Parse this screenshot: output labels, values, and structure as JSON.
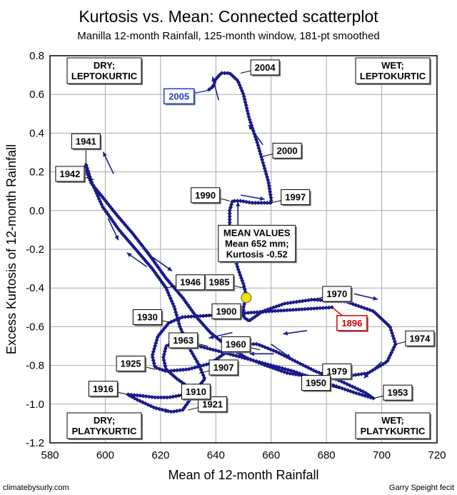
{
  "chart_data": {
    "type": "scatter",
    "title": "Kurtosis vs. Mean: Connected scatterplot",
    "subtitle": "Manilla 12-month Rainfall, 125-month window, 181-pt smoothed",
    "xlabel": "Mean of 12-month Rainfall",
    "ylabel": "Excess Kurtosis of 12-month Rainfall",
    "xlim": [
      580,
      720
    ],
    "ylim": [
      -1.2,
      0.8
    ],
    "xticks": [
      "580",
      "600",
      "620",
      "640",
      "660",
      "680",
      "700",
      "720"
    ],
    "yticks": [
      "0.8",
      "0.6",
      "0.4",
      "0.2",
      "0.0",
      "-0.2",
      "-0.4",
      "-0.6",
      "-0.8",
      "-1.0",
      "-1.2"
    ],
    "grid": true,
    "series_color": "#1a1a8c",
    "path": [
      [
        682,
        -0.5
      ],
      [
        660,
        -0.52
      ],
      [
        640,
        -0.54
      ],
      [
        628,
        -0.55
      ],
      [
        623,
        -0.58
      ],
      [
        619,
        -0.65
      ],
      [
        618,
        -0.7
      ],
      [
        617,
        -0.75
      ],
      [
        618,
        -0.81
      ],
      [
        622,
        -0.83
      ],
      [
        630,
        -0.82
      ],
      [
        638,
        -0.79
      ],
      [
        643,
        -0.74
      ],
      [
        647,
        -0.69
      ],
      [
        655,
        -0.69
      ],
      [
        662,
        -0.73
      ],
      [
        669,
        -0.78
      ],
      [
        676,
        -0.83
      ],
      [
        685,
        -0.88
      ],
      [
        694,
        -0.94
      ],
      [
        697,
        -0.97
      ],
      [
        690,
        -0.94
      ],
      [
        680,
        -0.89
      ],
      [
        668,
        -0.83
      ],
      [
        655,
        -0.78
      ],
      [
        642,
        -0.73
      ],
      [
        631,
        -0.69
      ],
      [
        625,
        -0.68
      ],
      [
        622,
        -0.7
      ],
      [
        621,
        -0.76
      ],
      [
        622,
        -0.82
      ],
      [
        626,
        -0.87
      ],
      [
        630,
        -0.91
      ],
      [
        632,
        -0.95
      ],
      [
        630,
        -0.99
      ],
      [
        628,
        -1.03
      ],
      [
        624,
        -1.04
      ],
      [
        618,
        -1.02
      ],
      [
        612,
        -0.98
      ],
      [
        608,
        -0.95
      ],
      [
        612,
        -0.955
      ],
      [
        618,
        -0.965
      ],
      [
        623,
        -0.965
      ],
      [
        629,
        -0.95
      ],
      [
        633,
        -0.92
      ],
      [
        636,
        -0.87
      ],
      [
        634,
        -0.8
      ],
      [
        630,
        -0.7
      ],
      [
        627,
        -0.6
      ],
      [
        625,
        -0.5
      ],
      [
        622,
        -0.4
      ],
      [
        617,
        -0.3
      ],
      [
        611,
        -0.2
      ],
      [
        605,
        -0.1
      ],
      [
        599,
        0.02
      ],
      [
        595,
        0.15
      ],
      [
        593,
        0.24
      ],
      [
        593,
        0.21
      ],
      [
        595,
        0.14
      ],
      [
        599,
        0.07
      ],
      [
        604,
        -0.02
      ],
      [
        610,
        -0.12
      ],
      [
        616,
        -0.23
      ],
      [
        622,
        -0.35
      ],
      [
        628,
        -0.45
      ],
      [
        633,
        -0.55
      ],
      [
        638,
        -0.63
      ],
      [
        644,
        -0.7
      ],
      [
        651,
        -0.76
      ],
      [
        658,
        -0.8
      ],
      [
        666,
        -0.84
      ],
      [
        675,
        -0.86
      ],
      [
        685,
        -0.86
      ],
      [
        695,
        -0.84
      ],
      [
        702,
        -0.78
      ],
      [
        705,
        -0.69
      ],
      [
        703,
        -0.6
      ],
      [
        697,
        -0.52
      ],
      [
        687,
        -0.47
      ],
      [
        675,
        -0.46
      ],
      [
        665,
        -0.48
      ],
      [
        657,
        -0.52
      ],
      [
        652,
        -0.57
      ],
      [
        650,
        -0.55
      ],
      [
        650,
        -0.5
      ],
      [
        651,
        -0.44
      ],
      [
        650,
        -0.38
      ],
      [
        648,
        -0.3
      ],
      [
        646,
        -0.2
      ],
      [
        645,
        -0.1
      ],
      [
        645,
        0.0
      ],
      [
        646,
        0.05
      ],
      [
        649,
        0.05
      ],
      [
        653,
        0.04
      ],
      [
        657,
        0.04
      ],
      [
        660,
        0.04
      ],
      [
        660,
        0.06
      ],
      [
        659,
        0.15
      ],
      [
        657,
        0.25
      ],
      [
        655,
        0.35
      ],
      [
        652,
        0.48
      ],
      [
        650,
        0.6
      ],
      [
        648,
        0.67
      ],
      [
        645,
        0.71
      ],
      [
        642,
        0.71
      ],
      [
        640,
        0.68
      ],
      [
        639,
        0.64
      ],
      [
        637,
        0.62
      ]
    ],
    "years": [
      {
        "label": "2004",
        "x": 649,
        "y": 0.71,
        "dir": "right"
      },
      {
        "label": "2000",
        "x": 657,
        "y": 0.28,
        "dir": "right"
      },
      {
        "label": "1997",
        "x": 660,
        "y": 0.04,
        "dir": "right"
      },
      {
        "label": "1990",
        "x": 645,
        "y": 0.05,
        "dir": "left"
      },
      {
        "label": "1985",
        "x": 650,
        "y": -0.4,
        "dir": "left"
      },
      {
        "label": "1970",
        "x": 675,
        "y": -0.46,
        "dir": "right"
      },
      {
        "label": "1974",
        "x": 705,
        "y": -0.69,
        "dir": "right"
      },
      {
        "label": "1979",
        "x": 675,
        "y": -0.86,
        "dir": "right"
      },
      {
        "label": "1953",
        "x": 697,
        "y": -0.97,
        "dir": "right"
      },
      {
        "label": "1950",
        "x": 685,
        "y": -0.92,
        "dir": "left"
      },
      {
        "label": "1960",
        "x": 656,
        "y": -0.72,
        "dir": "left"
      },
      {
        "label": "1963",
        "x": 637,
        "y": -0.7,
        "dir": "left"
      },
      {
        "label": "1907",
        "x": 634,
        "y": -0.84,
        "dir": "right"
      },
      {
        "label": "1921",
        "x": 630,
        "y": -1.03,
        "dir": "right"
      },
      {
        "label": "1916",
        "x": 608,
        "y": -0.95,
        "dir": "left"
      },
      {
        "label": "1910",
        "x": 624,
        "y": -0.965,
        "dir": "right"
      },
      {
        "label": "1925",
        "x": 618,
        "y": -0.82,
        "dir": "left"
      },
      {
        "label": "1930",
        "x": 624,
        "y": -0.58,
        "dir": "left"
      },
      {
        "label": "1900",
        "x": 635,
        "y": -0.55,
        "dir": "right"
      },
      {
        "label": "1946",
        "x": 622,
        "y": -0.4,
        "dir": "right"
      },
      {
        "label": "1941",
        "x": 593,
        "y": 0.24,
        "dir": "up"
      },
      {
        "label": "1942",
        "x": 596,
        "y": 0.16,
        "dir": "left"
      }
    ],
    "highlight_years": [
      {
        "label": "2005",
        "x": 637,
        "y": 0.62,
        "color": "#1a3fcc"
      },
      {
        "label": "1896",
        "x": 682,
        "y": -0.5,
        "color": "#d40000"
      }
    ],
    "quadrants": [
      {
        "line1": "DRY;",
        "line2": "LEPTOKURTIC",
        "pos": "top-left"
      },
      {
        "line1": "WET;",
        "line2": "LEPTOKURTIC",
        "pos": "top-right"
      },
      {
        "line1": "DRY;",
        "line2": "PLATYKURTIC",
        "pos": "bottom-left"
      },
      {
        "line1": "WET;",
        "line2": "PLATYKURTIC",
        "pos": "bottom-right"
      }
    ],
    "mean_annotation": {
      "line1": "MEAN VALUES",
      "line2": "Mean 652 mm;",
      "line3": "Kurtosis -0.52",
      "x": 652,
      "y": -0.52
    },
    "arrows": [
      [
        641,
        0.57,
        639,
        0.68
      ],
      [
        657,
        0.34,
        656,
        0.36
      ],
      [
        649,
        0.08,
        653,
        0.07
      ],
      [
        648,
        -0.08,
        648,
        -0.06
      ],
      [
        603,
        0.19,
        602,
        0.22
      ],
      [
        615,
        -0.29,
        614,
        -0.28
      ],
      [
        601,
        -0.04,
        602,
        -0.07
      ],
      [
        617,
        -0.24,
        618,
        -0.25
      ],
      [
        646,
        -0.63,
        643,
        -0.64
      ],
      [
        690,
        -0.43,
        693,
        -0.44
      ],
      [
        700,
        -0.78,
        697,
        -0.82
      ],
      [
        673,
        -0.62,
        668,
        -0.63
      ],
      [
        661,
        -0.74,
        660,
        -0.74
      ],
      [
        676,
        -0.86,
        682,
        -0.86
      ],
      [
        615,
        -1.0,
        617,
        -1.01
      ],
      [
        660,
        -0.69,
        661,
        -0.7
      ]
    ]
  },
  "footer": {
    "left": "climatebysurly.com",
    "right": "Garry Speight fecit"
  }
}
